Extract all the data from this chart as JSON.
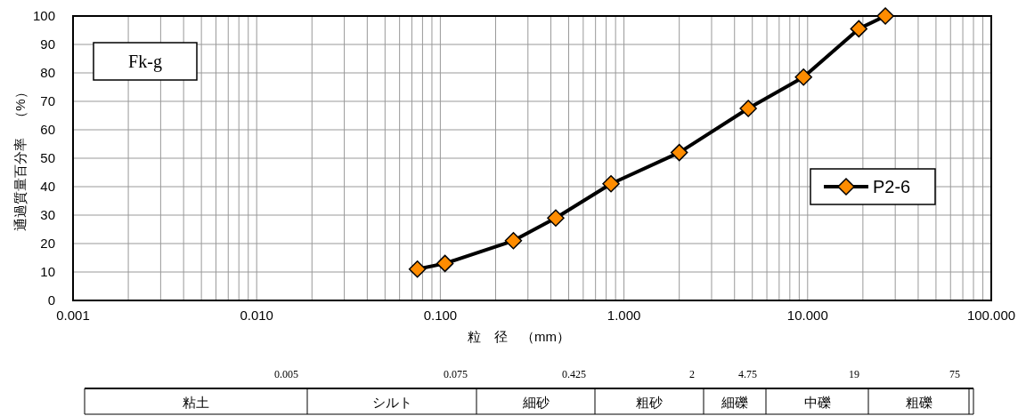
{
  "chart_data": [
    {
      "type": "line",
      "x": [
        0.075,
        0.106,
        0.25,
        0.425,
        0.85,
        2,
        4.75,
        9.5,
        19,
        26.5
      ],
      "series": [
        {
          "name": "P2-6",
          "color": "#ff8c00",
          "values": [
            11,
            13,
            21,
            29,
            41,
            52,
            67.5,
            78.5,
            95.5,
            100
          ]
        }
      ],
      "xlabel": "粒　径　（mm）",
      "ylabel": "通過質量百分率　（%）",
      "log": "x",
      "xlim": [
        0.001,
        100
      ],
      "xticks": [
        {
          "value": 0.001,
          "label": "0.001"
        },
        {
          "value": 0.01,
          "label": "0.010"
        },
        {
          "value": 0.1,
          "label": "0.100"
        },
        {
          "value": 1,
          "label": "1.000"
        },
        {
          "value": 10,
          "label": "10.000"
        },
        {
          "value": 100,
          "label": "100.000"
        }
      ],
      "ylim": [
        0,
        100
      ],
      "yticks": [
        0,
        10,
        20,
        30,
        40,
        50,
        60,
        70,
        80,
        90,
        100
      ],
      "annotations": [
        "Fk-g"
      ],
      "grid": true,
      "legend": "right",
      "marker": "diamond",
      "line_style": "solid"
    },
    {
      "type": "other",
      "categories": [
        "粘土",
        "シルト",
        "細砂",
        "粗砂",
        "細礫",
        "中礫",
        "粗礫"
      ],
      "annotations": [
        "0.005",
        "0.075",
        "0.425",
        "2",
        "4.75",
        "19",
        "75"
      ]
    }
  ]
}
